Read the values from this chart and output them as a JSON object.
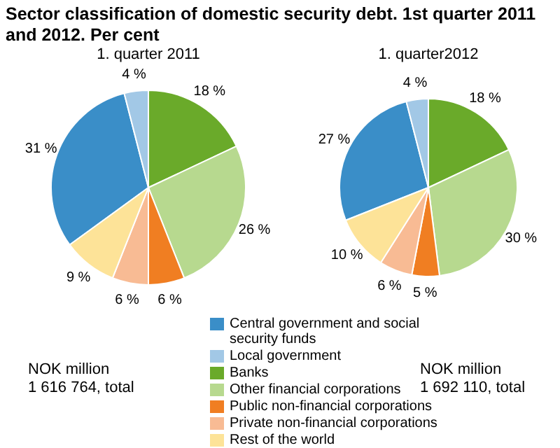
{
  "chart_data": [
    {
      "type": "pie",
      "title": "Sector classification of domestic security debt. 1st quarter 2011 and 2012. Per cent",
      "subtitle": "1. quarter 2011",
      "categories": [
        "Central government and social security funds",
        "Local government",
        "Banks",
        "Other financial corporations",
        "Public non-financial corporations",
        "Private non-financial corporations",
        "Rest of the world"
      ],
      "values": [
        31,
        4,
        18,
        26,
        6,
        6,
        9
      ],
      "value_labels": [
        "31 %",
        "4 %",
        "18 %",
        "26 %",
        "6 %",
        "6 %",
        "9 %"
      ],
      "colors": [
        "#3a8ec8",
        "#a2c8e6",
        "#6aaa2a",
        "#b7d98f",
        "#f07e22",
        "#f8bb94",
        "#fde398"
      ],
      "legend": "bottom right",
      "annotations": [
        "NOK million\n1 616 764, total"
      ]
    },
    {
      "type": "pie",
      "subtitle": "1. quarter2012",
      "categories": [
        null,
        null,
        null,
        null,
        null,
        null,
        null
      ],
      "values": [
        27,
        4,
        18,
        30,
        5,
        6,
        10
      ],
      "value_labels": [
        "27 %",
        "4 %",
        "18 %",
        "30 %",
        "5 %",
        "6 %",
        "10 %"
      ],
      "colors": [
        "#3a8ec8",
        "#a2c8e6",
        "#6aaa2a",
        "#b7d98f",
        "#f07e22",
        "#f8bb94",
        "#fde398"
      ],
      "annotations": [
        "NOK million\n1 692 110, total"
      ]
    }
  ]
}
